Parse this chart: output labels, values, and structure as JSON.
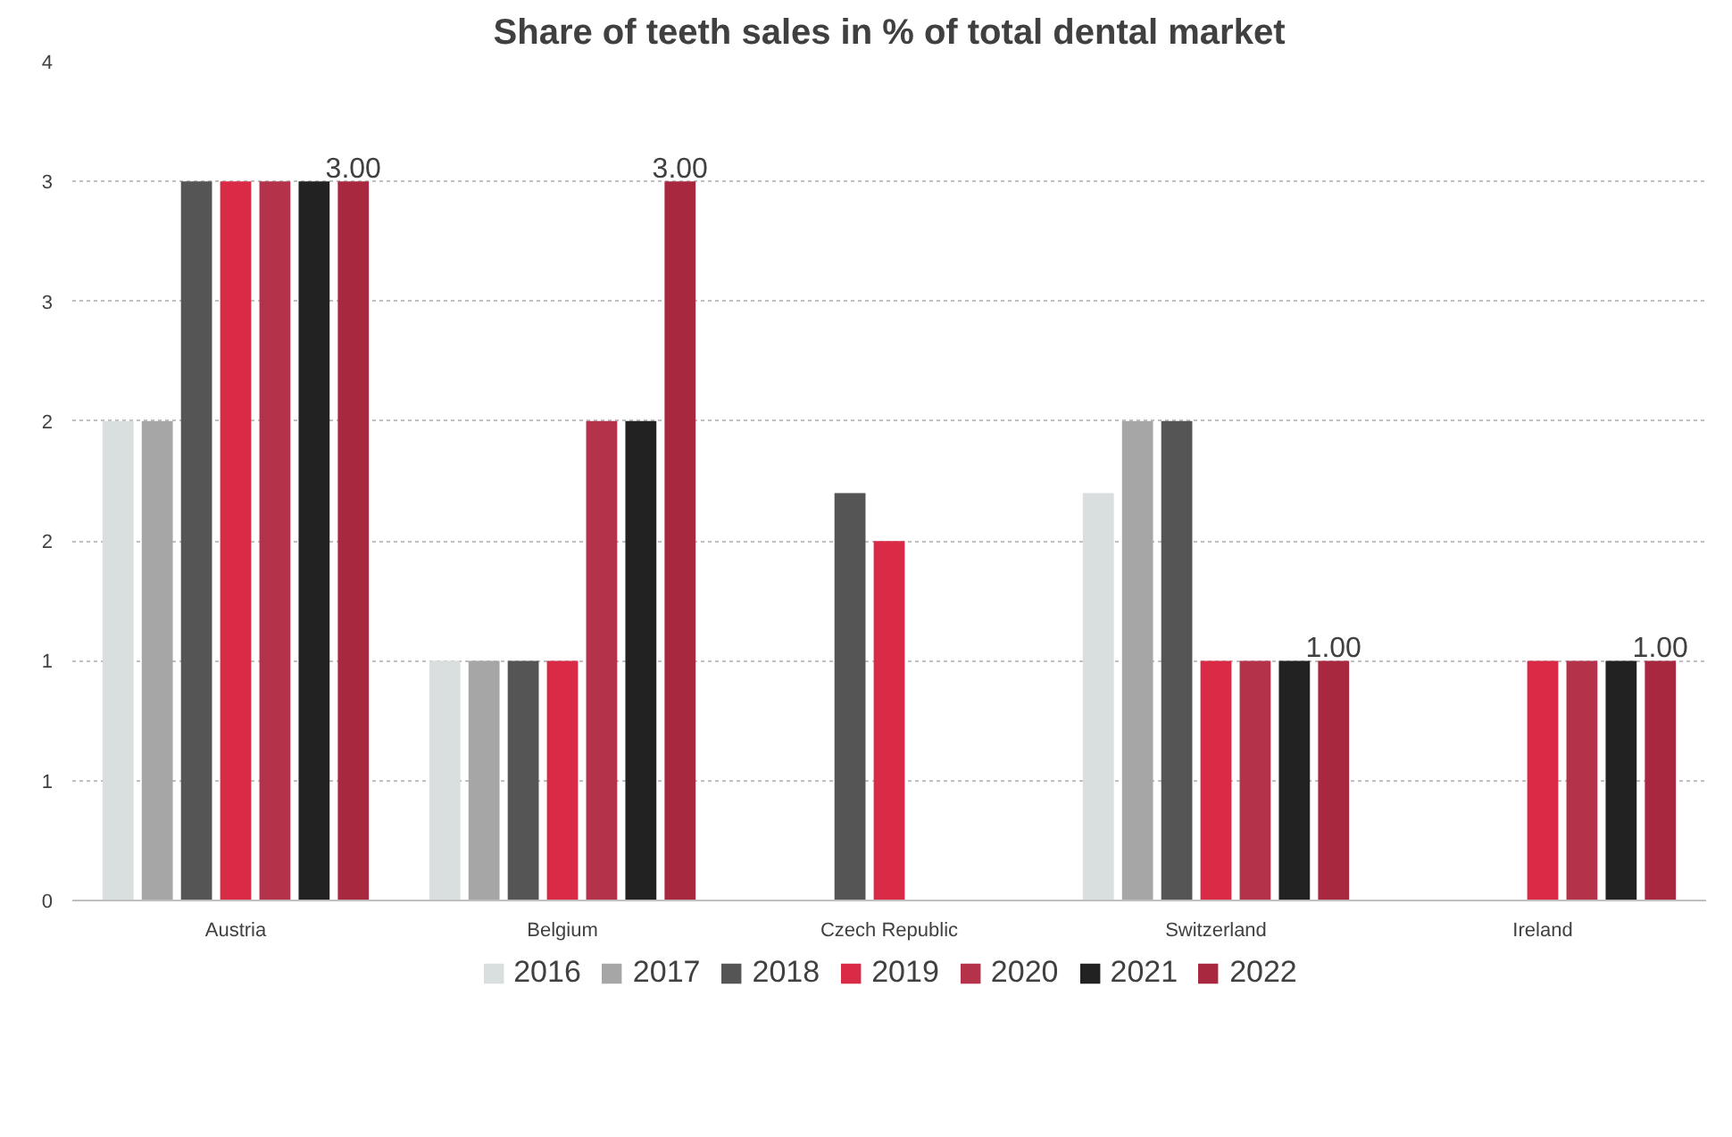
{
  "chart_data": {
    "type": "bar",
    "title": "Share of teeth sales in % of total dental market",
    "categories": [
      "Austria",
      "Belgium",
      "Czech Republic",
      "Switzerland",
      "Ireland"
    ],
    "ylim": [
      0,
      3.5
    ],
    "yticks": [
      0,
      {
        "value": 0.5,
        "label": "1"
      },
      1,
      {
        "value": 1.5,
        "label": "2"
      },
      2,
      {
        "value": 2.5,
        "label": "3"
      },
      3,
      {
        "value": 3.5,
        "label": "4"
      }
    ],
    "grid": "y",
    "legend": "bottom",
    "series": [
      {
        "name": "2016",
        "color": "#d9dede",
        "values": [
          2.0,
          1.0,
          null,
          1.7,
          null
        ]
      },
      {
        "name": "2017",
        "color": "#a6a6a6",
        "values": [
          2.0,
          1.0,
          null,
          2.0,
          null
        ]
      },
      {
        "name": "2018",
        "color": "#555555",
        "values": [
          3.0,
          1.0,
          1.7,
          2.0,
          null
        ]
      },
      {
        "name": "2019",
        "color": "#d92b45",
        "values": [
          3.0,
          1.0,
          1.5,
          1.0,
          1.0
        ]
      },
      {
        "name": "2020",
        "color": "#b5334a",
        "values": [
          3.0,
          2.0,
          null,
          1.0,
          1.0
        ]
      },
      {
        "name": "2021",
        "color": "#222222",
        "values": [
          3.0,
          2.0,
          null,
          1.0,
          1.0
        ]
      },
      {
        "name": "2022",
        "color": "#a8283f",
        "values": [
          3.0,
          3.0,
          null,
          1.0,
          1.0
        ],
        "value_labels": [
          "3.00",
          "3.00",
          null,
          "1.00",
          "1.00"
        ]
      }
    ]
  }
}
